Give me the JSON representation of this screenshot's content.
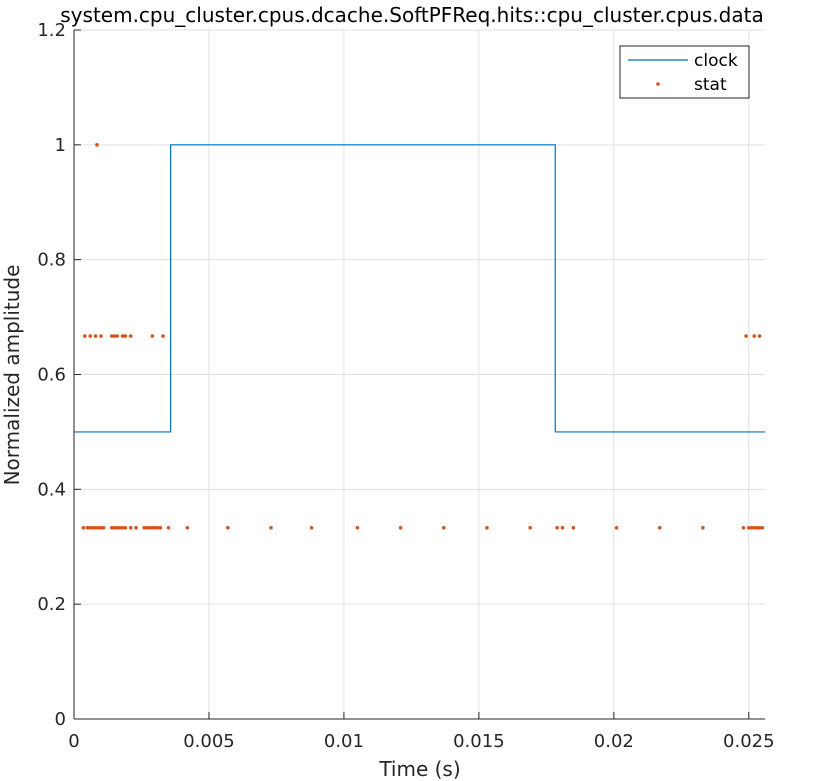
{
  "chart_data": {
    "type": "line",
    "title": "system.cpu_cluster.cpus.dcache.SoftPFReq.hits::cpu_cluster.cpus.data",
    "xlabel": "Time (s)",
    "ylabel": "Normalized amplitude",
    "xlim": [
      0,
      0.0256
    ],
    "ylim": [
      0,
      1.2
    ],
    "x_ticks": [
      0,
      0.005,
      0.01,
      0.015,
      0.02,
      0.025
    ],
    "x_tick_labels": [
      "0",
      "0.005",
      "0.01",
      "0.015",
      "0.02",
      "0.025"
    ],
    "y_ticks": [
      0,
      0.2,
      0.4,
      0.6,
      0.8,
      1,
      1.2
    ],
    "y_tick_labels": [
      "0",
      "0.2",
      "0.4",
      "0.6",
      "0.8",
      "1",
      "1.2"
    ],
    "grid": true,
    "legend_position": "top-right",
    "colors": {
      "clock": "#0072BD",
      "stat": "#D95319"
    },
    "series": [
      {
        "name": "clock",
        "kind": "line",
        "x": [
          0,
          0.00358,
          0.00358,
          0.01783,
          0.01783,
          0.0256
        ],
        "y": [
          0.5,
          0.5,
          1,
          1,
          0.5,
          0.5
        ]
      },
      {
        "name": "stat",
        "kind": "scatter",
        "x": [
          0.00085,
          0.0004,
          0.0006,
          0.0008,
          0.001,
          0.0014,
          0.0015,
          0.0016,
          0.0018,
          0.0019,
          0.0021,
          0.0029,
          0.0033,
          0.0249,
          0.0252,
          0.0254,
          0.00035,
          0.0005,
          0.0006,
          0.0007,
          0.0008,
          0.0009,
          0.001,
          0.0011,
          0.0014,
          0.0015,
          0.0016,
          0.0017,
          0.0018,
          0.0019,
          0.0021,
          0.0023,
          0.0026,
          0.0027,
          0.0028,
          0.0029,
          0.003,
          0.0031,
          0.0032,
          0.0035,
          0.0042,
          0.0057,
          0.0073,
          0.0088,
          0.0105,
          0.0121,
          0.0137,
          0.0153,
          0.0169,
          0.0179,
          0.0181,
          0.0185,
          0.0201,
          0.0217,
          0.0233,
          0.0248,
          0.025,
          0.0251,
          0.0252,
          0.0253,
          0.0254,
          0.0255
        ],
        "y": [
          1,
          0.667,
          0.667,
          0.667,
          0.667,
          0.667,
          0.667,
          0.667,
          0.667,
          0.667,
          0.667,
          0.667,
          0.667,
          0.667,
          0.667,
          0.667,
          0.333,
          0.333,
          0.333,
          0.333,
          0.333,
          0.333,
          0.333,
          0.333,
          0.333,
          0.333,
          0.333,
          0.333,
          0.333,
          0.333,
          0.333,
          0.333,
          0.333,
          0.333,
          0.333,
          0.333,
          0.333,
          0.333,
          0.333,
          0.333,
          0.333,
          0.333,
          0.333,
          0.333,
          0.333,
          0.333,
          0.333,
          0.333,
          0.333,
          0.333,
          0.333,
          0.333,
          0.333,
          0.333,
          0.333,
          0.333,
          0.333,
          0.333,
          0.333,
          0.333,
          0.333,
          0.333
        ]
      }
    ]
  }
}
